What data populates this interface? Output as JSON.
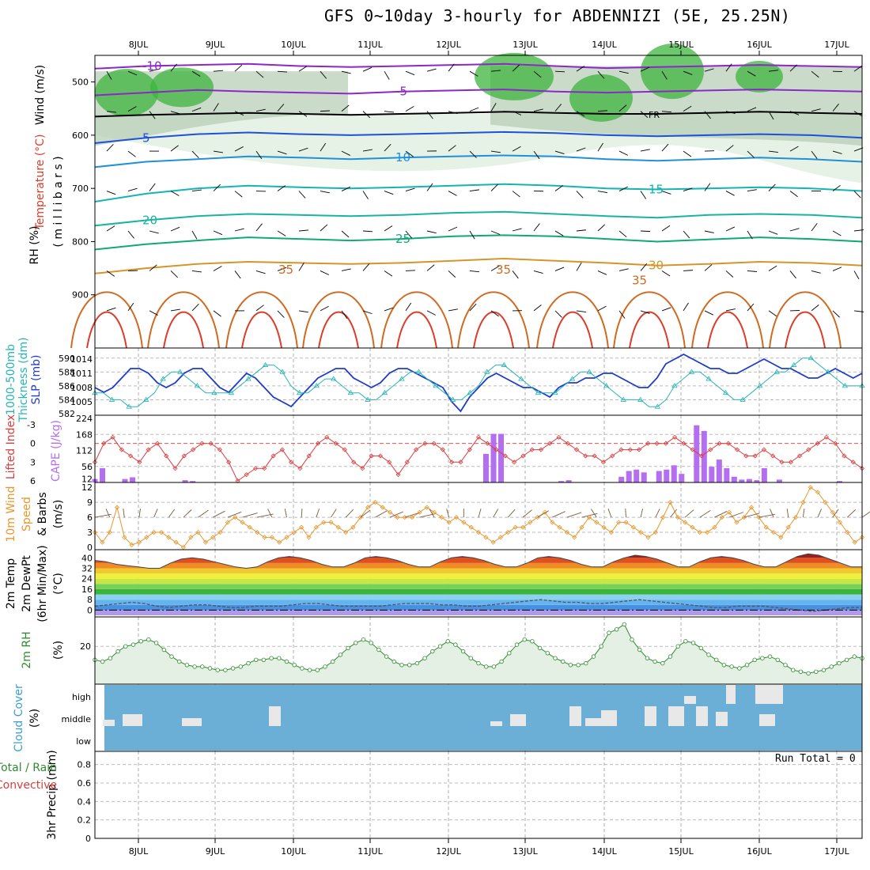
{
  "title": "GFS 0~10day 3-hourly for ABDENNIZI (5E, 25.25N)",
  "date_labels": [
    "8JUL",
    "9JUL",
    "10JUL",
    "11JUL",
    "12JUL",
    "13JUL",
    "14JUL",
    "15JUL",
    "16JUL",
    "17JUL"
  ],
  "run_total": "Run Total = 0",
  "colors": {
    "rh_green": "#3cb43c",
    "temp_cold": "#8c28c8",
    "temp_cool": "#1e50dc",
    "temp_mid": "#14b4b4",
    "temp_warm": "#d49628",
    "temp_hot": "#dc3c28",
    "slp": "#1e3ccc",
    "thickness": "#28b4b4",
    "cape": "#b46ef0",
    "lifted": "#dc3c3c",
    "wind": "#e8962c",
    "rh2m": "#2e8b2e",
    "cloud_bg": "#6baed6",
    "cloud_fill": "#e8e8e8"
  },
  "panel_labels": {
    "upper": {
      "wind": "Wind (m/s)",
      "temperature": "Temperature (°C)",
      "rh": "RH (%)",
      "mb": "( m i l l i b a r s )"
    },
    "slp": {
      "thickness1": "1000-500mb",
      "thickness2": "Thickness (dm)",
      "slp": "SLP (mb)"
    },
    "cape": {
      "li": "Lifted Index",
      "cape": "CAPE (J/kg)"
    },
    "wind10": {
      "a": "10m Wind",
      "b": "Speed",
      "c": "& Barbs",
      "units": "(m/s)"
    },
    "temp2m": {
      "a": "2m Temp",
      "b": "2m DewPt",
      "c": "(6hr Min/Max)",
      "units": "(°C)"
    },
    "rh2m": {
      "a": "2m RH",
      "units": "(%)"
    },
    "cloud": {
      "a": "Cloud Cover",
      "units": "(%)"
    },
    "precip": {
      "a": "Total / Rain",
      "b": "Convective",
      "c": "3hr Precip (mm)"
    }
  },
  "chart_data": [
    {
      "type": "contour",
      "name": "upper-air",
      "y_ticks": [
        500,
        600,
        700,
        800,
        900
      ],
      "ylim": [
        1000,
        450
      ],
      "temperature_contours": [
        {
          "label": "-10",
          "values": [
            475,
            470,
            468,
            466,
            470,
            472,
            470,
            468,
            466,
            470,
            474,
            472,
            470,
            468,
            470,
            472
          ]
        },
        {
          "label": "-5",
          "values": [
            525,
            520,
            515,
            518,
            520,
            522,
            518,
            516,
            514,
            518,
            520,
            518,
            516,
            514,
            516,
            518
          ]
        },
        {
          "label": "FR",
          "values": [
            565,
            562,
            560,
            558,
            560,
            562,
            560,
            558,
            556,
            558,
            560,
            560,
            558,
            556,
            558,
            560
          ]
        },
        {
          "label": "5",
          "values": [
            615,
            605,
            598,
            595,
            598,
            600,
            598,
            596,
            594,
            596,
            600,
            602,
            600,
            598,
            600,
            605
          ]
        },
        {
          "label": "10",
          "values": [
            660,
            650,
            645,
            640,
            642,
            645,
            642,
            640,
            638,
            640,
            645,
            648,
            645,
            642,
            645,
            650
          ]
        },
        {
          "label": "15",
          "values": [
            725,
            710,
            700,
            695,
            698,
            700,
            698,
            695,
            692,
            695,
            700,
            702,
            700,
            698,
            700,
            705
          ]
        },
        {
          "label": "20",
          "values": [
            770,
            760,
            752,
            748,
            750,
            752,
            750,
            746,
            744,
            748,
            752,
            755,
            750,
            748,
            750,
            755
          ]
        },
        {
          "label": "25",
          "values": [
            815,
            805,
            798,
            792,
            795,
            798,
            795,
            790,
            788,
            790,
            795,
            800,
            796,
            792,
            795,
            800
          ]
        },
        {
          "label": "30",
          "values": [
            860,
            850,
            842,
            838,
            840,
            842,
            840,
            836,
            832,
            836,
            840,
            845,
            842,
            838,
            840,
            845
          ]
        }
      ],
      "contour_labels": [
        "-10",
        "-5",
        "FR",
        "5",
        "10",
        "15",
        "20",
        "25",
        "30",
        "35"
      ]
    },
    {
      "type": "line",
      "name": "slp-thickness",
      "y_ticks_left": [
        582,
        584,
        586,
        588,
        590
      ],
      "y_ticks_right": [
        1005,
        1008,
        1011,
        1014
      ],
      "series": [
        {
          "name": "SLP (mb)",
          "axis": "right",
          "values": [
            1008,
            1007,
            1008,
            1010,
            1012,
            1012,
            1011,
            1009,
            1008,
            1009,
            1011,
            1012,
            1012,
            1010,
            1008,
            1007,
            1009,
            1011,
            1010,
            1008,
            1006,
            1005,
            1004,
            1006,
            1008,
            1010,
            1011,
            1012,
            1012,
            1010,
            1009,
            1008,
            1009,
            1011,
            1012,
            1012,
            1011,
            1010,
            1009,
            1008,
            1005,
            1003,
            1006,
            1008,
            1010,
            1011,
            1010,
            1009,
            1008,
            1008,
            1007,
            1006,
            1008,
            1009,
            1009,
            1010,
            1010,
            1011,
            1011,
            1010,
            1009,
            1008,
            1008,
            1010,
            1013,
            1014,
            1015,
            1014,
            1013,
            1012,
            1012,
            1011,
            1011,
            1012,
            1013,
            1014,
            1013,
            1012,
            1012,
            1011,
            1010,
            1010,
            1011,
            1012,
            1011,
            1010,
            1011
          ]
        },
        {
          "name": "1000-500mb Thickness (dm)",
          "axis": "left",
          "values": [
            585,
            585,
            584,
            584,
            583,
            583,
            584,
            585,
            587,
            588,
            588,
            587,
            586,
            585,
            585,
            585,
            585,
            586,
            587,
            588,
            589,
            589,
            588,
            586,
            585,
            585,
            586,
            587,
            587,
            586,
            585,
            585,
            584,
            584,
            585,
            586,
            587,
            588,
            588,
            587,
            586,
            585,
            584,
            584,
            585,
            586,
            588,
            589,
            589,
            588,
            587,
            586,
            585,
            585,
            585,
            586,
            587,
            588,
            588,
            587,
            586,
            585,
            584,
            584,
            584,
            583,
            583,
            584,
            586,
            587,
            588,
            588,
            587,
            586,
            585,
            584,
            584,
            585,
            586,
            587,
            588,
            588,
            589,
            590,
            590,
            589,
            588,
            587,
            586,
            586,
            586
          ]
        }
      ]
    },
    {
      "type": "bar+line",
      "name": "cape-li",
      "y_ticks_left": [
        "-3",
        "0",
        "3",
        "6"
      ],
      "y_ticks_right": [
        224,
        168,
        112,
        56,
        12
      ],
      "series": [
        {
          "name": "Lifted Index",
          "values": [
            3,
            0,
            -1,
            1,
            2,
            3,
            1,
            0,
            2,
            4,
            2,
            1,
            0,
            0,
            1,
            3,
            6,
            5,
            4,
            4,
            2,
            1,
            3,
            4,
            2,
            0,
            -1,
            0,
            1,
            3,
            4,
            2,
            2,
            3,
            5,
            3,
            1,
            0,
            0,
            1,
            3,
            3,
            1,
            -1,
            0,
            1,
            2,
            3,
            2,
            1,
            1,
            0,
            -1,
            0,
            1,
            2,
            2,
            3,
            2,
            1,
            1,
            1,
            0,
            0,
            0,
            -1,
            0,
            1,
            2,
            1,
            0,
            0,
            1,
            2,
            2,
            1,
            2,
            3,
            3,
            2,
            1,
            0,
            -1,
            0,
            2,
            3,
            4
          ]
        },
        {
          "name": "CAPE (J/kg)",
          "values": [
            12,
            50,
            0,
            0,
            12,
            18,
            0,
            0,
            0,
            0,
            0,
            0,
            8,
            5,
            0,
            0,
            0,
            0,
            0,
            0,
            0,
            0,
            0,
            0,
            0,
            0,
            0,
            0,
            0,
            0,
            0,
            0,
            0,
            0,
            0,
            0,
            0,
            0,
            0,
            0,
            0,
            0,
            0,
            0,
            0,
            0,
            0,
            0,
            0,
            0,
            0,
            0,
            100,
            170,
            170,
            0,
            0,
            0,
            0,
            0,
            0,
            0,
            5,
            8,
            0,
            0,
            0,
            0,
            0,
            0,
            20,
            40,
            45,
            35,
            0,
            40,
            45,
            60,
            30,
            0,
            200,
            180,
            55,
            80,
            50,
            20,
            10,
            12,
            8,
            50,
            0,
            10,
            0,
            0,
            0,
            0,
            0,
            0,
            0,
            5,
            0,
            0,
            0
          ]
        }
      ]
    },
    {
      "type": "line",
      "name": "wind10m",
      "y_ticks": [
        0,
        3,
        6,
        9,
        12
      ],
      "series": [
        {
          "name": "Speed",
          "values": [
            3,
            1,
            3,
            8,
            2,
            0.5,
            1,
            2,
            3,
            3,
            2,
            1,
            0,
            2,
            3,
            1,
            2,
            3,
            5,
            6,
            5,
            4,
            3,
            2,
            2,
            1,
            2,
            3,
            4,
            2,
            4,
            5,
            5,
            4,
            3,
            4,
            6,
            8,
            9,
            8,
            7,
            6,
            6,
            6,
            7,
            8,
            7,
            6,
            5,
            6,
            5,
            4,
            3,
            2,
            1,
            2,
            3,
            4,
            4,
            5,
            6,
            7,
            5,
            4,
            3,
            2,
            4,
            6,
            5,
            4,
            3,
            5,
            5,
            4,
            3,
            2,
            3,
            6,
            9,
            6,
            5,
            4,
            3,
            3,
            4,
            6,
            7,
            5,
            6,
            8,
            6,
            4,
            3,
            2,
            4,
            6,
            9,
            12,
            11,
            9,
            7,
            5,
            3,
            1,
            2
          ]
        }
      ]
    },
    {
      "type": "area",
      "name": "temp2m",
      "y_ticks": [
        0,
        8,
        16,
        24,
        32,
        40
      ],
      "series": [
        {
          "name": "2m Temp",
          "values": [
            38,
            37,
            35,
            34,
            33,
            32,
            32,
            36,
            39,
            40,
            39,
            37,
            35,
            33,
            32,
            33,
            37,
            40,
            41,
            40,
            38,
            35,
            33,
            33,
            36,
            40,
            41,
            40,
            38,
            35,
            33,
            33,
            37,
            40,
            41,
            40,
            38,
            35,
            33,
            33,
            36,
            40,
            41,
            40,
            38,
            35,
            33,
            33,
            37,
            40,
            42,
            41,
            39,
            36,
            33,
            33,
            37,
            40,
            41,
            40,
            38,
            35,
            33,
            33,
            37,
            41,
            43,
            42,
            39,
            36,
            33,
            33
          ]
        },
        {
          "name": "2m DewPt",
          "values": [
            3,
            4,
            5,
            6,
            5,
            3,
            2,
            3,
            4,
            4,
            3,
            2,
            2,
            3,
            3,
            3,
            4,
            5,
            5,
            4,
            3,
            3,
            3,
            3,
            4,
            5,
            5,
            5,
            4,
            4,
            3,
            3,
            4,
            5,
            6,
            7,
            8,
            7,
            6,
            6,
            5,
            5,
            6,
            7,
            8,
            7,
            6,
            5,
            4,
            3,
            2,
            2,
            3,
            3,
            3,
            2,
            1,
            0,
            -1,
            0,
            1,
            2,
            2
          ]
        }
      ]
    },
    {
      "type": "area",
      "name": "rh2m",
      "y_ticks": [
        20
      ],
      "series": [
        {
          "name": "2m RH",
          "values": [
            12,
            11,
            13,
            17,
            20,
            21,
            23,
            24,
            22,
            18,
            14,
            11,
            9,
            8,
            8,
            7,
            6,
            6,
            7,
            8,
            10,
            12,
            12,
            13,
            13,
            11,
            9,
            7,
            6,
            6,
            8,
            11,
            15,
            19,
            22,
            24,
            22,
            18,
            14,
            11,
            9,
            9,
            10,
            13,
            17,
            20,
            23,
            21,
            17,
            13,
            10,
            8,
            8,
            11,
            16,
            21,
            24,
            23,
            19,
            16,
            13,
            11,
            9,
            9,
            10,
            14,
            20,
            28,
            30,
            33,
            24,
            18,
            13,
            11,
            10,
            14,
            20,
            23,
            22,
            19,
            15,
            12,
            9,
            8,
            7,
            9,
            12,
            13,
            14,
            12,
            9,
            6,
            5,
            4,
            5,
            6,
            8,
            10,
            12,
            14,
            13
          ]
        }
      ]
    },
    {
      "type": "bar",
      "name": "cloud-cover",
      "categories": [
        "low",
        "middle",
        "high"
      ]
    },
    {
      "type": "bar",
      "name": "precip",
      "y_ticks": [
        0,
        0.2,
        0.4,
        0.6,
        0.8
      ]
    }
  ]
}
